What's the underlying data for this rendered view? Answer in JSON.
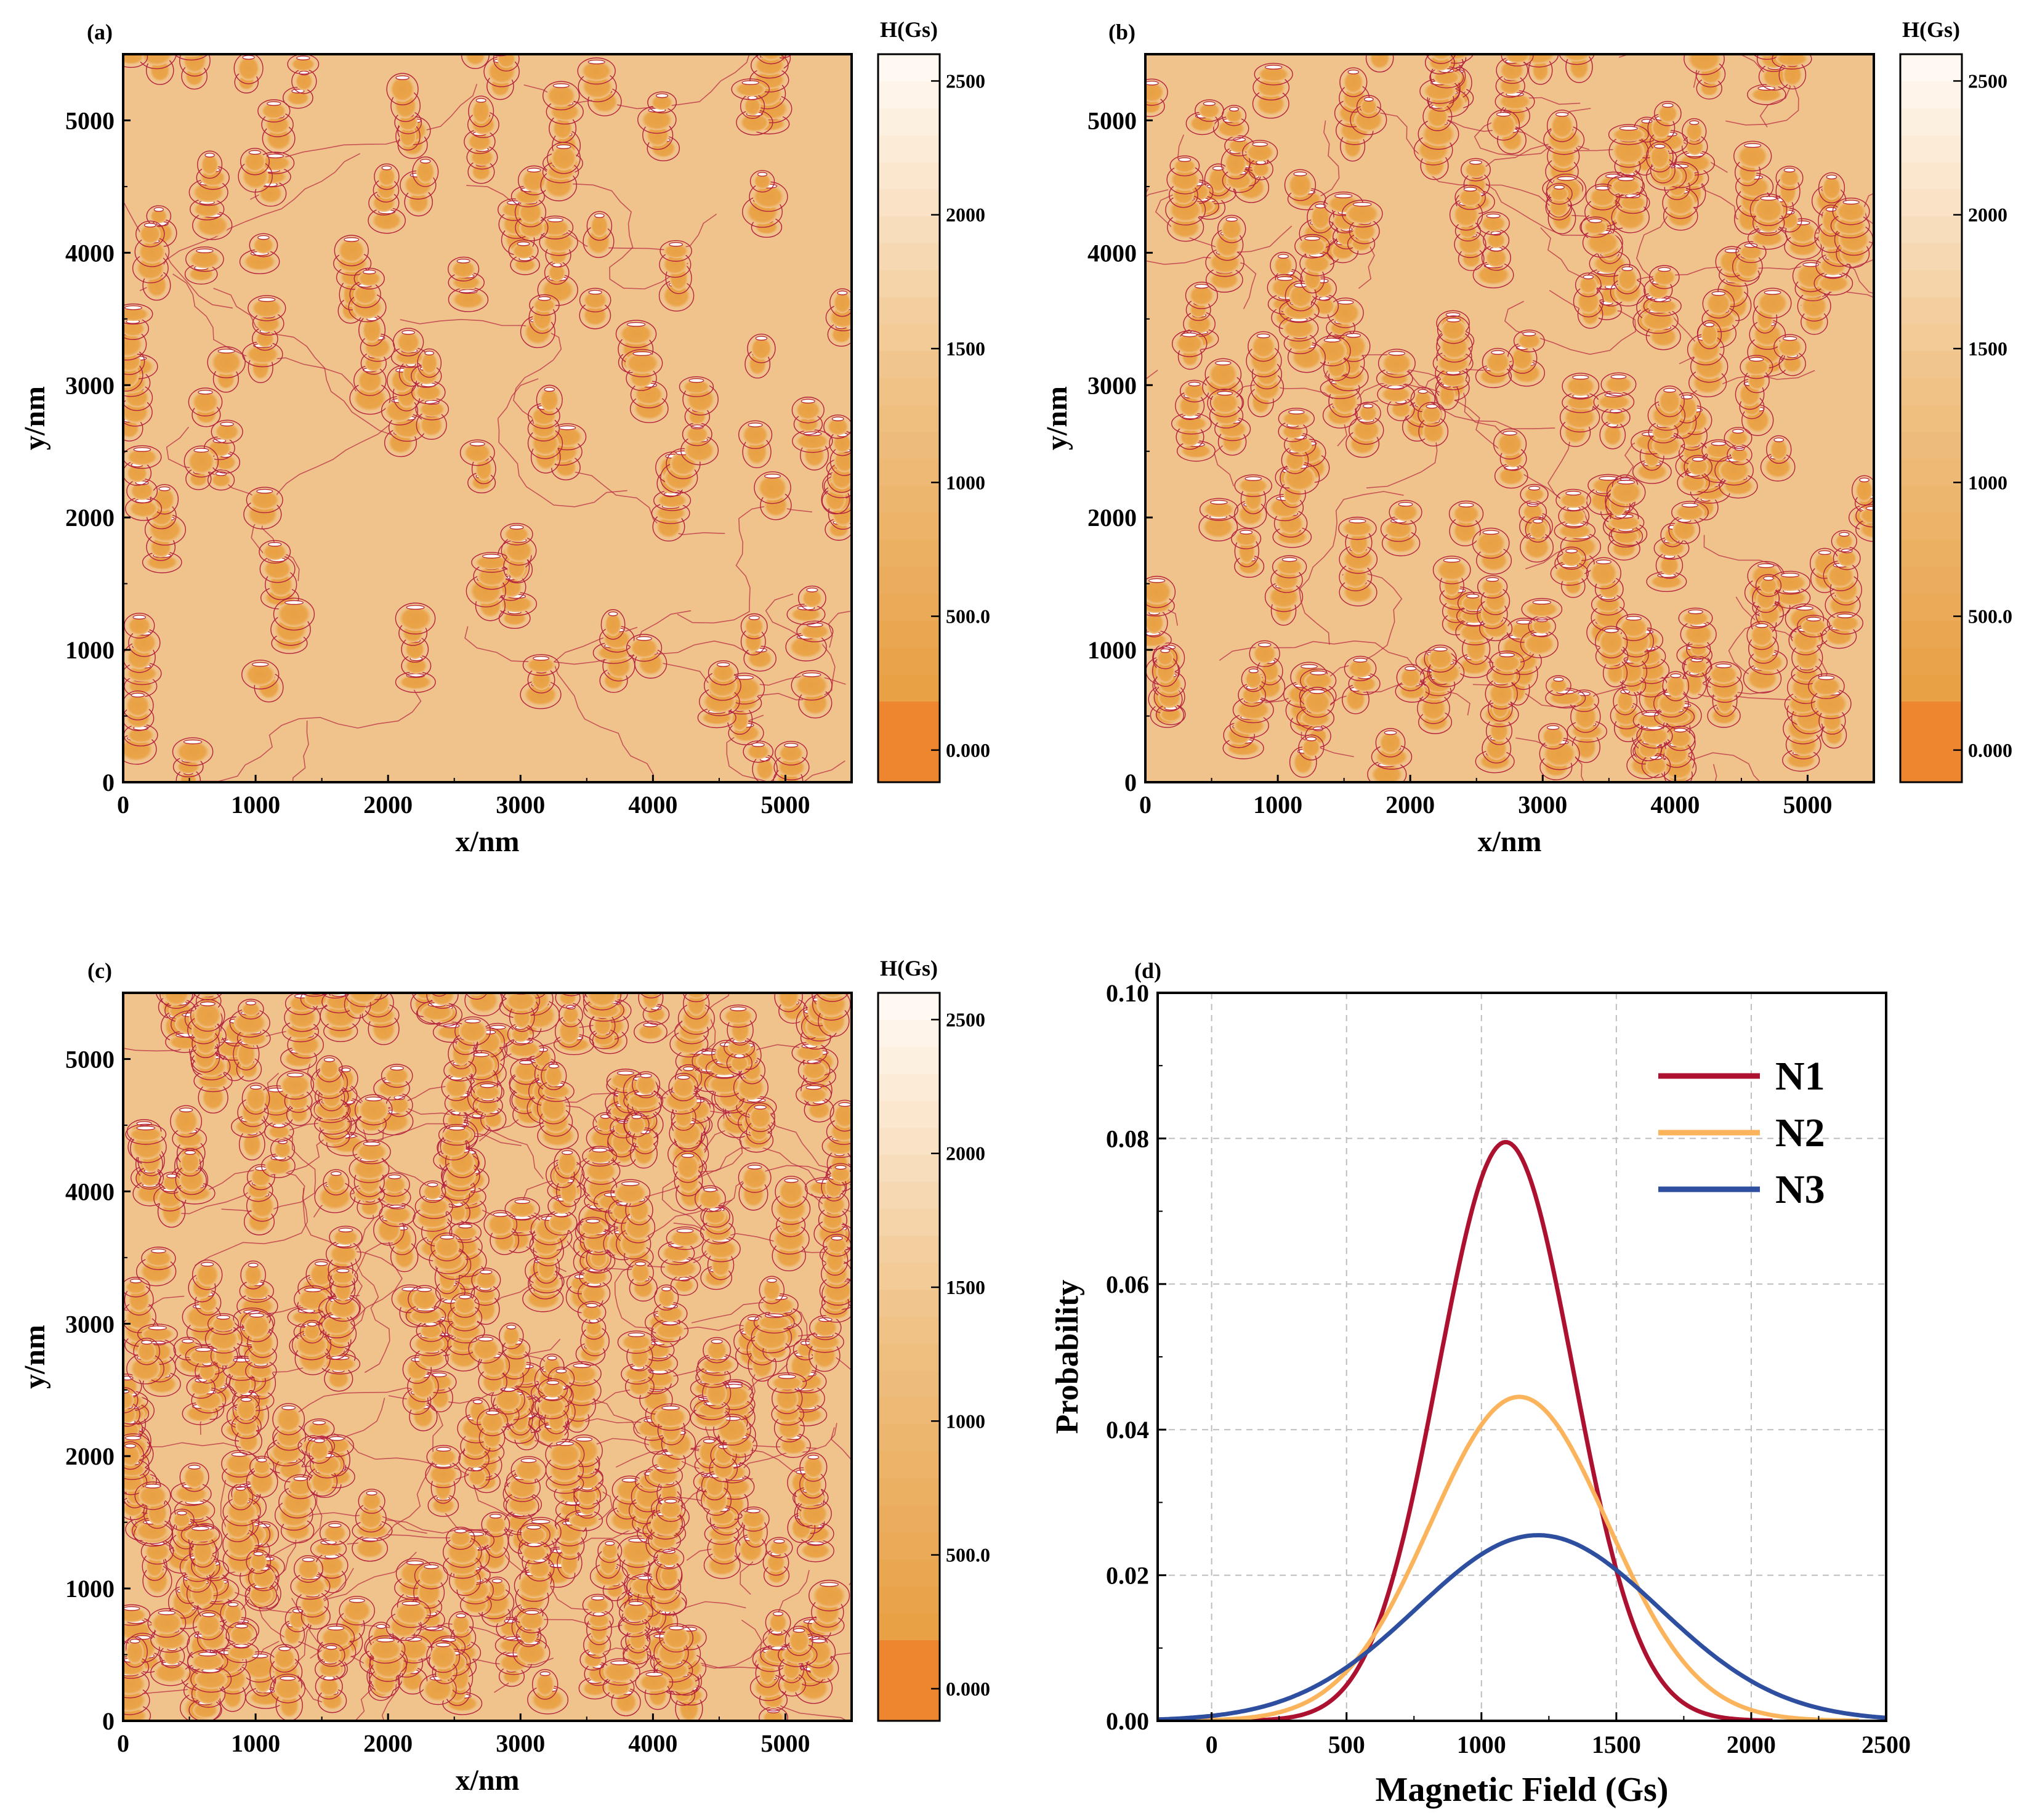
{
  "figure": {
    "colorbar_title": "H(Gs)",
    "colorbar_ticks": [
      "0.000",
      "500.0",
      "1000",
      "1500",
      "2000",
      "2500"
    ],
    "colorbar_tick_values": [
      0,
      500,
      1000,
      1500,
      2000,
      2500
    ],
    "colorbar_range": [
      -120,
      2600
    ],
    "colors": {
      "background": "#f0c38c",
      "domain": "#e8a043",
      "contour": "#b5233e",
      "core": "#ffffff",
      "cbar_bottom": "#ee8630",
      "cbar_top": "#fff9f2"
    }
  },
  "chart_data": [
    {
      "panel": "(a)",
      "type": "heatmap",
      "xlabel": "x/nm",
      "ylabel": "y/nm",
      "xlim": [
        0,
        5500
      ],
      "ylim": [
        0,
        5500
      ],
      "xticks": [
        "0",
        "1000",
        "2000",
        "3000",
        "4000",
        "5000"
      ],
      "yticks": [
        "0",
        "1000",
        "2000",
        "3000",
        "4000",
        "5000"
      ],
      "tick_values": [
        0,
        1000,
        2000,
        3000,
        4000,
        5000
      ],
      "colorbar_label": "H(Gs)",
      "cluster_count": 90
    },
    {
      "panel": "(b)",
      "type": "heatmap",
      "xlabel": "x/nm",
      "ylabel": "y/nm",
      "xlim": [
        0,
        5500
      ],
      "ylim": [
        0,
        5500
      ],
      "xticks": [
        "0",
        "1000",
        "2000",
        "3000",
        "4000",
        "5000"
      ],
      "yticks": [
        "0",
        "1000",
        "2000",
        "3000",
        "4000",
        "5000"
      ],
      "tick_values": [
        0,
        1000,
        2000,
        3000,
        4000,
        5000
      ],
      "colorbar_label": "H(Gs)",
      "cluster_count": 175
    },
    {
      "panel": "(c)",
      "type": "heatmap",
      "xlabel": "x/nm",
      "ylabel": "y/nm",
      "xlim": [
        0,
        5500
      ],
      "ylim": [
        0,
        5500
      ],
      "xticks": [
        "0",
        "1000",
        "2000",
        "3000",
        "4000",
        "5000"
      ],
      "yticks": [
        "0",
        "1000",
        "2000",
        "3000",
        "4000",
        "5000"
      ],
      "tick_values": [
        0,
        1000,
        2000,
        3000,
        4000,
        5000
      ],
      "colorbar_label": "H(Gs)",
      "cluster_count": 300
    },
    {
      "panel": "(d)",
      "type": "line",
      "xlabel": "Magnetic Field (Gs)",
      "ylabel": "Probability",
      "xlim": [
        -200,
        2500
      ],
      "ylim": [
        0,
        0.1
      ],
      "xticks": [
        "0",
        "500",
        "1000",
        "1500",
        "2000",
        "2500"
      ],
      "xtick_values": [
        0,
        500,
        1000,
        1500,
        2000,
        2500
      ],
      "yticks": [
        "0.00",
        "0.02",
        "0.04",
        "0.06",
        "0.08",
        "0.10"
      ],
      "ytick_values": [
        0,
        0.02,
        0.04,
        0.06,
        0.08,
        0.1
      ],
      "grid": true,
      "legend_position": "top-right",
      "series": [
        {
          "name": "N1",
          "color": "#ad1130",
          "peak_x": 1090,
          "peak_y": 0.0795,
          "sigma": 250,
          "x_range": [
            95,
            2080
          ],
          "x": [
            200,
            400,
            600,
            800,
            1000,
            1090,
            1200,
            1400,
            1600,
            1800,
            2000
          ],
          "y": [
            0.0013,
            0.0052,
            0.0162,
            0.0407,
            0.0746,
            0.0795,
            0.0719,
            0.0369,
            0.01,
            0.0014,
            0.0001
          ]
        },
        {
          "name": "N2",
          "color": "#fbb45c",
          "peak_x": 1140,
          "peak_y": 0.0445,
          "sigma": 330,
          "x_range": [
            -200,
            2400
          ],
          "x": [
            0,
            400,
            800,
            1000,
            1140,
            1400,
            1800,
            2200
          ],
          "y": [
            0.0012,
            0.0081,
            0.0291,
            0.0406,
            0.0445,
            0.0328,
            0.006,
            0.0003
          ]
        },
        {
          "name": "N3",
          "color": "#2e4e9f",
          "peak_x": 1210,
          "peak_y": 0.0255,
          "sigma": 450,
          "x_range": [
            -200,
            2500
          ],
          "x": [
            -200,
            0,
            400,
            800,
            1210,
            1600,
            2000,
            2500
          ],
          "y": [
            0.0004,
            0.0008,
            0.005,
            0.0168,
            0.0255,
            0.0174,
            0.0055,
            0.0004
          ]
        }
      ]
    }
  ]
}
